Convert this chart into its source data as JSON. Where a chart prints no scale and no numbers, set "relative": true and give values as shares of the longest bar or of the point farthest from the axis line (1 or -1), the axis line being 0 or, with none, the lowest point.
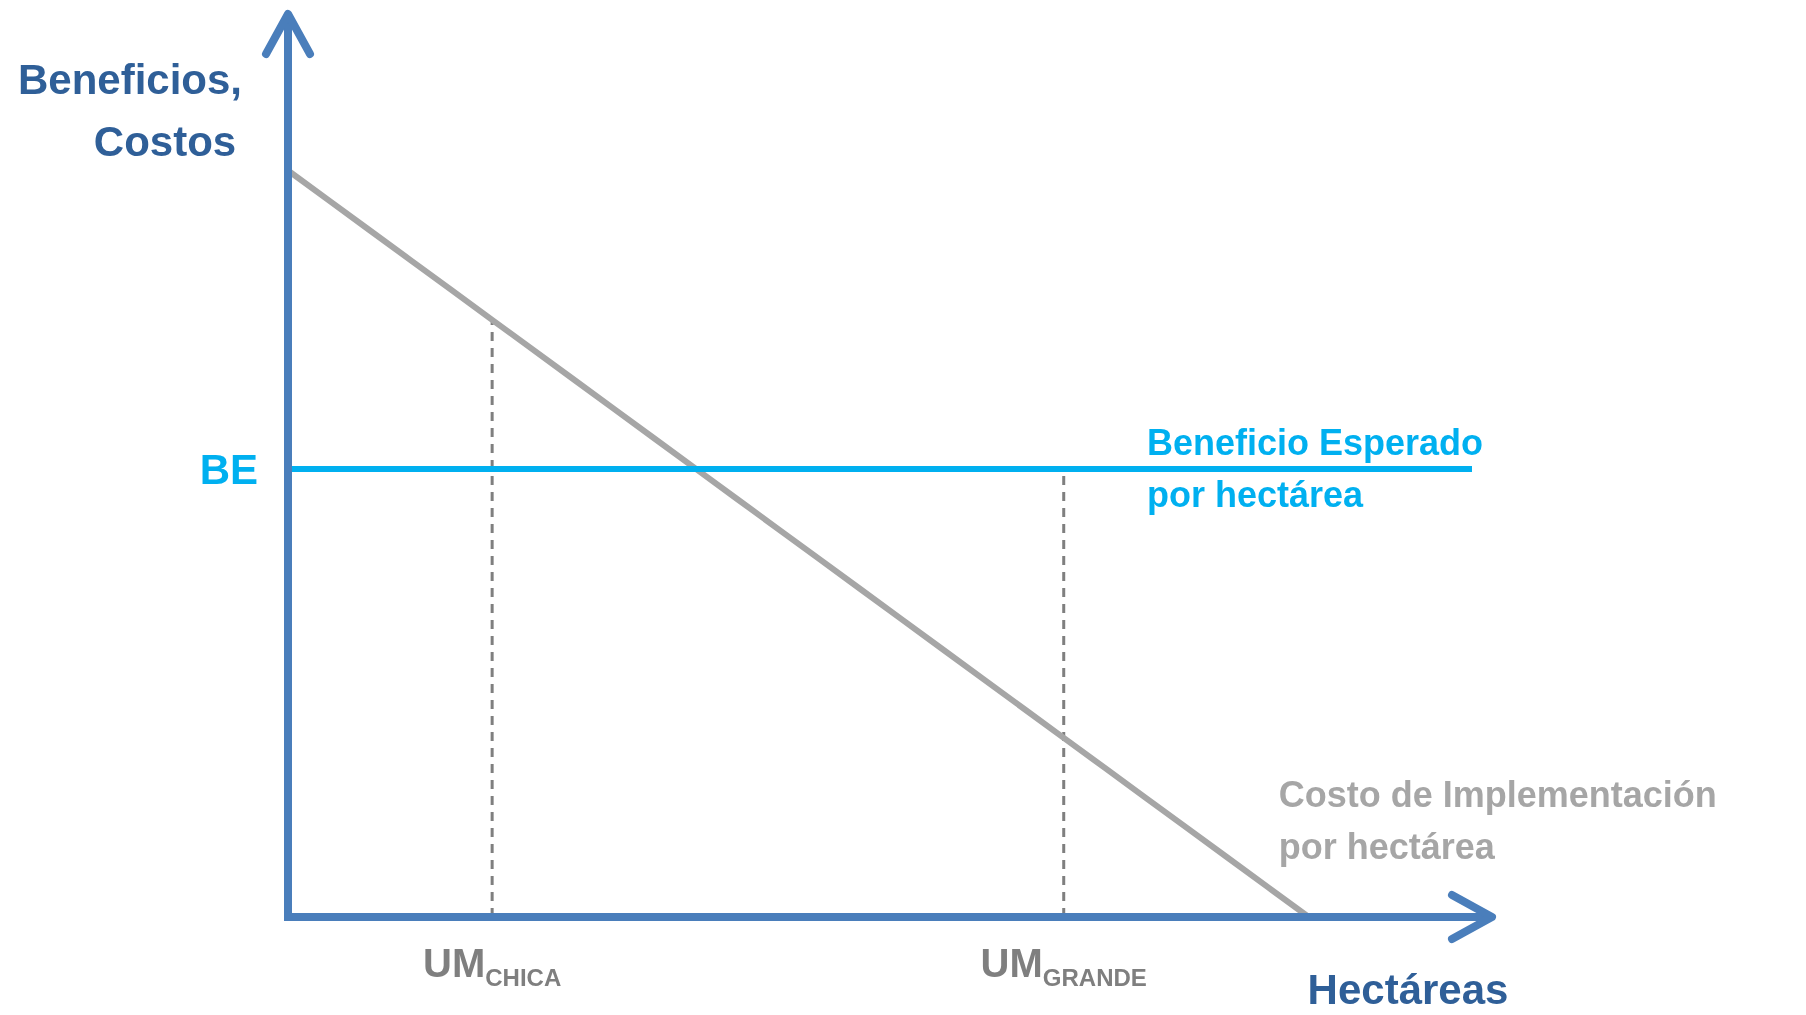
{
  "chart_data": {
    "type": "line",
    "relative": true,
    "xlabel": "Hectáreas",
    "ylabel": "Beneficios, Costos",
    "marker": "none",
    "categories": [
      null,
      null,
      null,
      null,
      null,
      "UM$_{CHICA}$",
      null,
      null,
      null,
      null,
      null,
      null,
      null,
      null,
      null,
      null,
      null,
      null,
      null,
      "UM$_{GRANDE}$",
      null,
      null,
      null,
      null,
      null,
      null,
      null,
      null,
      null,
      null
    ],
    "series": [
      {
        "name": "Costo de Implementación por hectárea",
        "color": "#a6a6a6",
        "line_style": "solid",
        "values": [
          1,
          0.96,
          0.92,
          0.88,
          0.84,
          0.8,
          0.76,
          0.72,
          0.68,
          0.64,
          0.6,
          0.56,
          0.52,
          0.48,
          0.44,
          0.4,
          0.36,
          0.32,
          0.28,
          0.24,
          0.2,
          0.16,
          0.12,
          0.08,
          0.04,
          0,
          null,
          null,
          null,
          null
        ]
      },
      {
        "name": "Beneficio Esperado por hectárea",
        "color": "#00b0f0",
        "line_style": "solid",
        "values": [
          0.6,
          0.6,
          0.6,
          0.6,
          0.6,
          0.6,
          0.6,
          0.6,
          0.6,
          0.6,
          0.6,
          0.6,
          0.6,
          0.6,
          0.6,
          0.6,
          0.6,
          0.6,
          0.6,
          0.6,
          0.6,
          0.6,
          0.6,
          0.6,
          0.6,
          0.6,
          0.6,
          0.6,
          0.6,
          0.6
        ]
      }
    ],
    "ref_lines": [
      {
        "axis": "x",
        "value": "UM$_{CHICA}$",
        "color": "#7f7f7f",
        "line_style": "dashed"
      },
      {
        "axis": "x",
        "value": "UM$_{GRANDE}$",
        "color": "#7f7f7f",
        "line_style": "dashed"
      }
    ],
    "annotations": [
      "BE"
    ]
  }
}
